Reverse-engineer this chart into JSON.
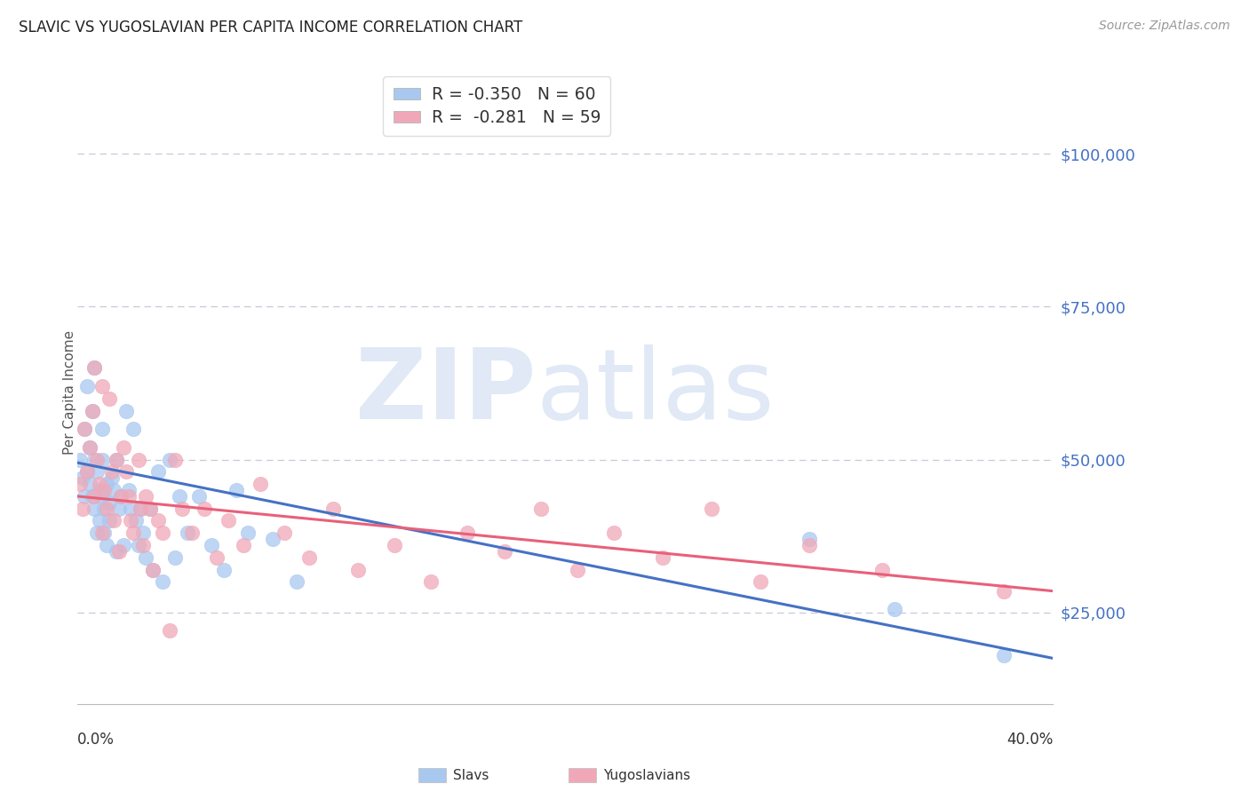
{
  "title": "SLAVIC VS YUGOSLAVIAN PER CAPITA INCOME CORRELATION CHART",
  "source": "Source: ZipAtlas.com",
  "ylabel": "Per Capita Income",
  "xlim": [
    0.0,
    0.4
  ],
  "ylim": [
    10000,
    112000
  ],
  "yticks": [
    25000,
    50000,
    75000,
    100000
  ],
  "ytick_labels": [
    "$25,000",
    "$50,000",
    "$75,000",
    "$100,000"
  ],
  "slavs_color": "#a8c8f0",
  "yugoslavians_color": "#f0a8b8",
  "slavs_line_color": "#4472c4",
  "yugoslavians_line_color": "#e8607a",
  "background_color": "#ffffff",
  "grid_color": "#c8c8d8",
  "legend_slavs_r": "-0.350",
  "legend_slavs_n": "60",
  "legend_yugoslavians_r": "-0.281",
  "legend_yugoslavians_n": "59",
  "slavs_line_x0": 0.0,
  "slavs_line_y0": 49500,
  "slavs_line_x1": 0.4,
  "slavs_line_y1": 17500,
  "yugo_line_x0": 0.0,
  "yugo_line_y0": 44000,
  "yugo_line_x1": 0.4,
  "yugo_line_y1": 28500,
  "slavs_x": [
    0.001,
    0.002,
    0.003,
    0.003,
    0.004,
    0.004,
    0.005,
    0.005,
    0.006,
    0.006,
    0.007,
    0.007,
    0.007,
    0.008,
    0.008,
    0.009,
    0.009,
    0.01,
    0.01,
    0.01,
    0.011,
    0.011,
    0.012,
    0.012,
    0.013,
    0.013,
    0.014,
    0.015,
    0.016,
    0.016,
    0.017,
    0.018,
    0.019,
    0.02,
    0.021,
    0.022,
    0.023,
    0.024,
    0.025,
    0.026,
    0.027,
    0.028,
    0.03,
    0.031,
    0.033,
    0.035,
    0.038,
    0.04,
    0.042,
    0.045,
    0.05,
    0.055,
    0.06,
    0.065,
    0.07,
    0.08,
    0.09,
    0.3,
    0.335,
    0.38
  ],
  "slavs_y": [
    50000,
    47000,
    55000,
    44000,
    62000,
    48000,
    52000,
    46000,
    58000,
    44000,
    65000,
    50000,
    42000,
    48000,
    38000,
    45000,
    40000,
    55000,
    50000,
    44000,
    42000,
    38000,
    46000,
    36000,
    43000,
    40000,
    47000,
    45000,
    50000,
    35000,
    42000,
    44000,
    36000,
    58000,
    45000,
    42000,
    55000,
    40000,
    36000,
    42000,
    38000,
    34000,
    42000,
    32000,
    48000,
    30000,
    50000,
    34000,
    44000,
    38000,
    44000,
    36000,
    32000,
    45000,
    38000,
    37000,
    30000,
    37000,
    25500,
    18000
  ],
  "yugo_x": [
    0.001,
    0.002,
    0.003,
    0.004,
    0.005,
    0.006,
    0.007,
    0.007,
    0.008,
    0.009,
    0.01,
    0.01,
    0.011,
    0.012,
    0.013,
    0.014,
    0.015,
    0.016,
    0.017,
    0.018,
    0.019,
    0.02,
    0.021,
    0.022,
    0.023,
    0.025,
    0.026,
    0.027,
    0.028,
    0.03,
    0.031,
    0.033,
    0.035,
    0.038,
    0.04,
    0.043,
    0.047,
    0.052,
    0.057,
    0.062,
    0.068,
    0.075,
    0.085,
    0.095,
    0.105,
    0.115,
    0.13,
    0.145,
    0.16,
    0.175,
    0.19,
    0.205,
    0.22,
    0.24,
    0.26,
    0.28,
    0.3,
    0.33,
    0.38
  ],
  "yugo_y": [
    46000,
    42000,
    55000,
    48000,
    52000,
    58000,
    44000,
    65000,
    50000,
    46000,
    62000,
    38000,
    45000,
    42000,
    60000,
    48000,
    40000,
    50000,
    35000,
    44000,
    52000,
    48000,
    44000,
    40000,
    38000,
    50000,
    42000,
    36000,
    44000,
    42000,
    32000,
    40000,
    38000,
    22000,
    50000,
    42000,
    38000,
    42000,
    34000,
    40000,
    36000,
    46000,
    38000,
    34000,
    42000,
    32000,
    36000,
    30000,
    38000,
    35000,
    42000,
    32000,
    38000,
    34000,
    42000,
    30000,
    36000,
    32000,
    28500
  ]
}
